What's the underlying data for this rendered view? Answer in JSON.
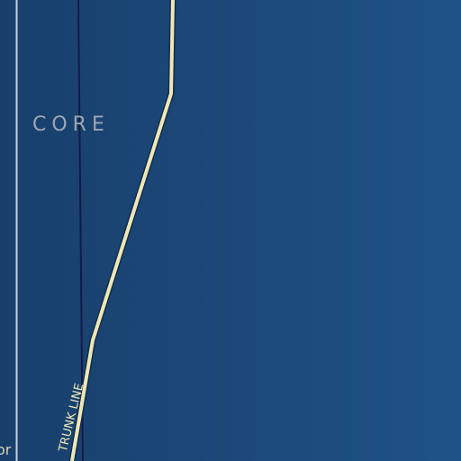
{
  "map": {
    "district_label": "CORE",
    "road_label": "TRUNK LINE",
    "edge_label": "or",
    "colors": {
      "background_left": "#183f6c",
      "background_right": "#1f5286",
      "trunk_line": "#efe7b4",
      "trunk_outline": "#0f2e52",
      "boundary_line": "#c9cfd8",
      "dark_line": "#121a4a",
      "district_label": "#9ea7b2",
      "road_label": "#efe7b4",
      "edge_label": "#d8d2b0"
    }
  }
}
